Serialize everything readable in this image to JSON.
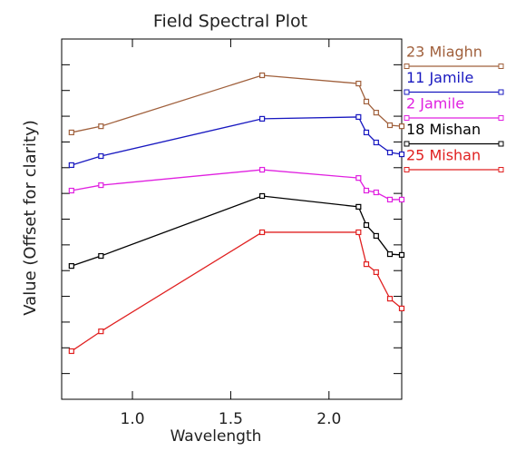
{
  "chart_data": {
    "type": "line",
    "title": "Field Spectral Plot",
    "x_label": "Wavelength",
    "y_label": "Value (Offset for clarity)",
    "x": [
      0.69,
      0.84,
      1.66,
      2.15,
      2.19,
      2.24,
      2.31,
      2.37
    ],
    "xlim": [
      0.64,
      2.37
    ],
    "xticks": [
      {
        "value": 1,
        "label": "1.0"
      },
      1.5,
      {
        "value": 2,
        "label": "2.0"
      }
    ],
    "ylim": [
      0,
      14
    ],
    "yticks": [
      1,
      2,
      3,
      4,
      5,
      6,
      7,
      8,
      9,
      10,
      11,
      12,
      13
    ],
    "series": [
      {
        "name": "23 Miaghn",
        "color": "#a0603c",
        "values": [
          10.37,
          10.61,
          12.59,
          12.27,
          11.57,
          11.14,
          10.65,
          10.61
        ]
      },
      {
        "name": "11 Jamile",
        "color": "#1818c0",
        "values": [
          9.1,
          9.45,
          10.9,
          10.97,
          10.37,
          9.98,
          9.59,
          9.52
        ]
      },
      {
        "name": "2 Jamile",
        "color": "#e020e0",
        "values": [
          8.11,
          8.32,
          8.92,
          8.6,
          8.11,
          8.04,
          7.76,
          7.76
        ]
      },
      {
        "name": "18 Mishan",
        "color": "#000000",
        "values": [
          5.18,
          5.57,
          7.9,
          7.48,
          6.77,
          6.35,
          5.64,
          5.61
        ]
      },
      {
        "name": "25 Mishan",
        "color": "#e02020",
        "values": [
          1.87,
          2.64,
          6.49,
          6.49,
          5.25,
          4.94,
          3.91,
          3.53
        ]
      }
    ]
  }
}
